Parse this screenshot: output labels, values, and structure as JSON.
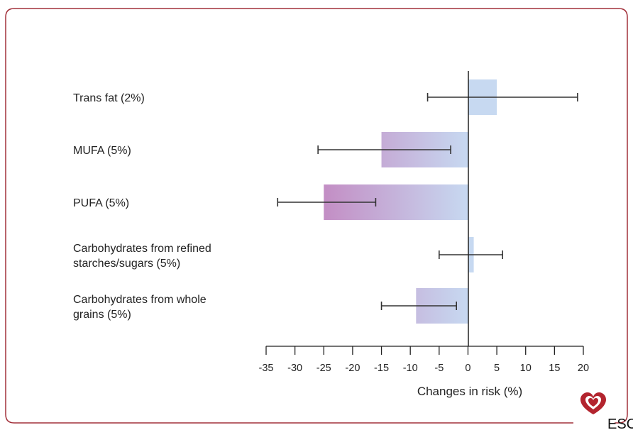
{
  "chart_data": {
    "type": "bar",
    "orientation": "horizontal",
    "categories": [
      [
        "Trans fat (2%)"
      ],
      [
        "MUFA (5%)"
      ],
      [
        "PUFA (5%)"
      ],
      [
        "Carbohydrates from refined",
        "starches/sugars (5%)"
      ],
      [
        "Carbohydrates from whole",
        "grains (5%)"
      ]
    ],
    "values": [
      5,
      -15,
      -25,
      1,
      -9
    ],
    "error_low": [
      -7,
      -26,
      -33,
      -5,
      -15
    ],
    "error_high": [
      19,
      -3,
      -16,
      6,
      -2
    ],
    "xlabel": "Changes in risk (%)",
    "xlim": [
      -35,
      20
    ],
    "x_ticks": [
      "-35",
      "-30",
      "-25",
      "-20",
      "-15",
      "-10",
      "-5",
      "0",
      "5",
      "10",
      "15",
      "20"
    ],
    "colors": {
      "bar_light": "#c7d9f1",
      "bar_dark": "#c279b8",
      "frame": "#a2303a",
      "error": "#333333"
    }
  },
  "logo": {
    "text": "ESC"
  }
}
